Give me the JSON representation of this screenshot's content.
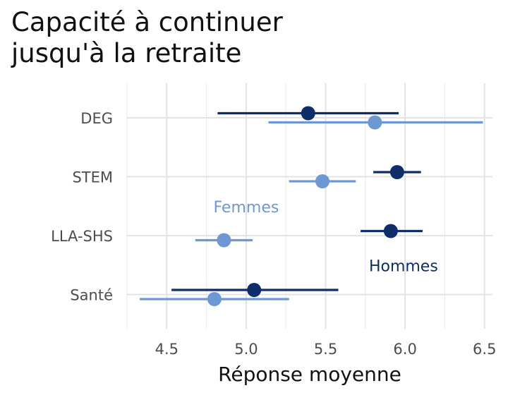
{
  "chart_data": {
    "type": "dot-errorbar",
    "title_lines": [
      "Capacité à continuer",
      "jusqu'à la retraite"
    ],
    "xlabel": "Réponse moyenne",
    "ylabel": "",
    "xlim": [
      4.25,
      6.55
    ],
    "xticks": [
      "4.5",
      "5.0",
      "5.5",
      "6.0",
      "6.5"
    ],
    "xtick_values": [
      4.5,
      5.0,
      5.5,
      6.0,
      6.5
    ],
    "categories": [
      "DEG",
      "STEM",
      "LLA-SHS",
      "Santé"
    ],
    "grid": true,
    "legend": "none",
    "series": [
      {
        "name": "Hommes",
        "color": "#0d2d6b",
        "points": [
          {
            "category": "DEG",
            "mean": 5.39,
            "low": 4.82,
            "high": 5.96
          },
          {
            "category": "STEM",
            "mean": 5.95,
            "low": 5.8,
            "high": 6.1
          },
          {
            "category": "LLA-SHS",
            "mean": 5.91,
            "low": 5.72,
            "high": 6.11
          },
          {
            "category": "Santé",
            "mean": 5.05,
            "low": 4.53,
            "high": 5.58
          }
        ]
      },
      {
        "name": "Femmes",
        "color": "#6e98d4",
        "points": [
          {
            "category": "DEG",
            "mean": 5.81,
            "low": 5.14,
            "high": 6.49
          },
          {
            "category": "STEM",
            "mean": 5.48,
            "low": 5.27,
            "high": 5.69
          },
          {
            "category": "LLA-SHS",
            "mean": 4.86,
            "low": 4.68,
            "high": 5.04
          },
          {
            "category": "Santé",
            "mean": 4.8,
            "low": 4.33,
            "high": 5.27
          }
        ]
      }
    ],
    "annotations": [
      {
        "text": "Femmes",
        "series": "Femmes",
        "x": 5.0,
        "category": "LLA-SHS",
        "position": "above"
      },
      {
        "text": "Hommes",
        "series": "Hommes",
        "x": 5.99,
        "category": "Santé",
        "position": "above"
      }
    ]
  }
}
